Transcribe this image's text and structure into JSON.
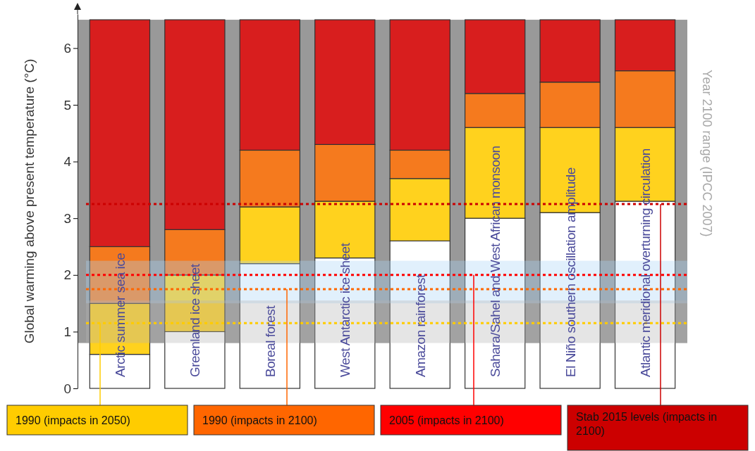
{
  "chart_data": {
    "type": "bar",
    "stacked": true,
    "ylabel": "Global warming above present temperature (°C)",
    "categories": [
      "Arctic summer sea ice",
      "Greenland ice sheet",
      "Boreal forest",
      "West Antarctic ice sheet",
      "Amazon rainforest",
      "Sahara/Sahel and West African monsoon",
      "El Niño southern oscillation amplitude",
      "Atlantic meridional overturning circulation"
    ],
    "series": [
      {
        "color": "#ffffff",
        "values": [
          0.6,
          1.0,
          2.2,
          2.3,
          2.6,
          3.0,
          3.1,
          3.3
        ]
      },
      {
        "color": "#ffd21e",
        "values": [
          0.9,
          1.0,
          1.0,
          1.0,
          1.1,
          1.6,
          1.5,
          1.3
        ]
      },
      {
        "color": "#f57a1e",
        "values": [
          1.0,
          0.8,
          1.0,
          1.0,
          0.5,
          0.6,
          0.8,
          1.0
        ]
      },
      {
        "color": "#d81e1e",
        "values": [
          4.0,
          3.7,
          2.3,
          2.2,
          2.3,
          1.3,
          1.1,
          0.9
        ]
      }
    ],
    "ylim": [
      0,
      6.6
    ],
    "yticks": [
      0,
      1,
      2,
      3,
      4,
      5,
      6
    ],
    "bands": [
      {
        "axis": "y",
        "from": 0.8,
        "to": 6.5,
        "label": "Year 2100 range (IPCC 2007)",
        "color": "#999999"
      },
      {
        "axis": "y",
        "from": 1.5,
        "to": 2.25,
        "color": "#a8d4f5"
      },
      {
        "axis": "y",
        "from": 0.8,
        "to": 1.55,
        "color": "#b4b4b4"
      }
    ],
    "ref_lines": [
      {
        "axis": "y",
        "value": 1.15,
        "label": "1990 (impacts in 2050)",
        "color": "#ffcc00",
        "line_style": "dotted"
      },
      {
        "axis": "y",
        "value": 1.75,
        "label": "1990 (impacts in 2100)",
        "color": "#ff6600",
        "line_style": "dotted"
      },
      {
        "axis": "y",
        "value": 2.0,
        "label": "2005 (impacts in 2100)",
        "color": "#ff0000",
        "line_style": "dotted"
      },
      {
        "axis": "y",
        "value": 3.25,
        "label": "Stab 2015 levels (impacts in 2100)",
        "color": "#cc0000",
        "line_style": "dotted"
      }
    ]
  }
}
